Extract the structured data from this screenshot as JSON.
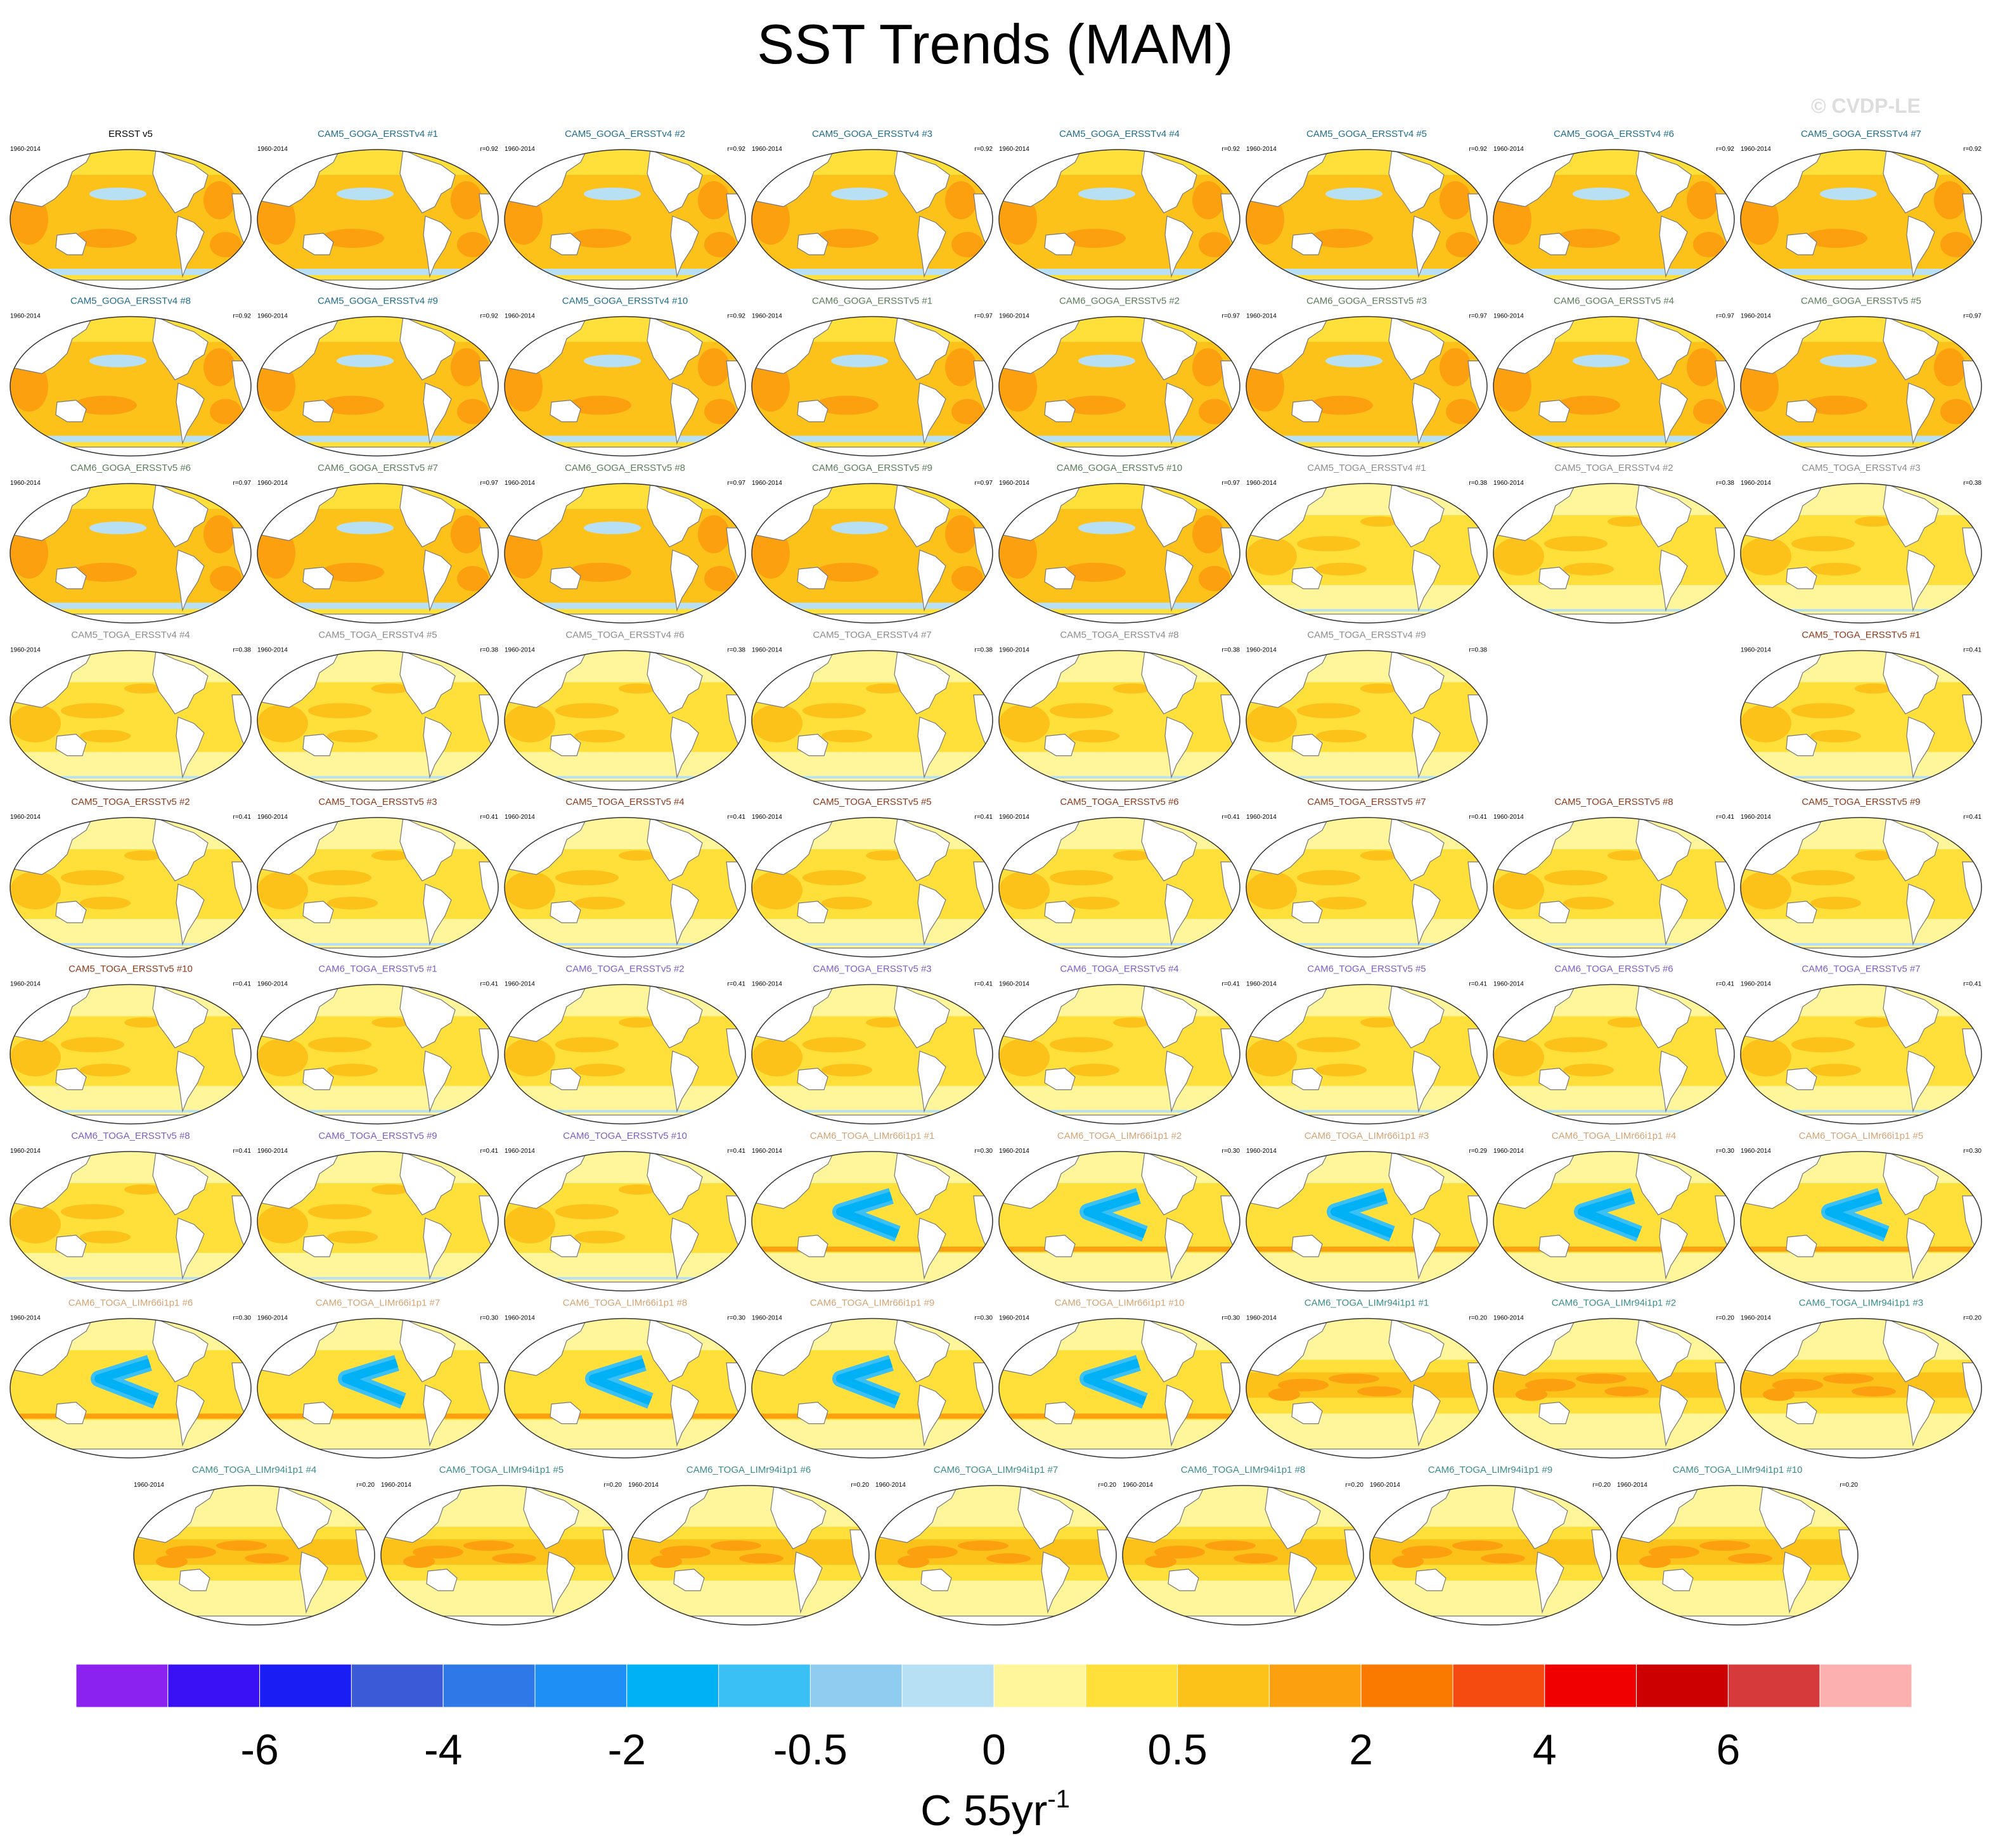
{
  "title": "SST Trends (MAM)",
  "watermark": "© CVDP-LE",
  "groups": [
    {
      "color": "#000000",
      "panels": [
        {
          "title": "ERSST v5",
          "period": "1960-2014"
        }
      ]
    },
    {
      "color": "#1f6f8b",
      "panels": [
        {
          "title": "CAM5_GOGA_ERSSTv4 #1",
          "period": "1960-2014",
          "r": "r=0.92"
        },
        {
          "title": "CAM5_GOGA_ERSSTv4 #2",
          "period": "1960-2014",
          "r": "r=0.92"
        },
        {
          "title": "CAM5_GOGA_ERSSTv4 #3",
          "period": "1960-2014",
          "r": "r=0.92"
        },
        {
          "title": "CAM5_GOGA_ERSSTv4 #4",
          "period": "1960-2014",
          "r": "r=0.92"
        },
        {
          "title": "CAM5_GOGA_ERSSTv4 #5",
          "period": "1960-2014",
          "r": "r=0.92"
        },
        {
          "title": "CAM5_GOGA_ERSSTv4 #6",
          "period": "1960-2014",
          "r": "r=0.92"
        },
        {
          "title": "CAM5_GOGA_ERSSTv4 #7",
          "period": "1960-2014",
          "r": "r=0.92"
        },
        {
          "title": "CAM5_GOGA_ERSSTv4 #8",
          "period": "1960-2014",
          "r": "r=0.92"
        },
        {
          "title": "CAM5_GOGA_ERSSTv4 #9",
          "period": "1960-2014",
          "r": "r=0.92"
        },
        {
          "title": "CAM5_GOGA_ERSSTv4 #10",
          "period": "1960-2014",
          "r": "r=0.92"
        }
      ]
    },
    {
      "color": "#5a7d5a",
      "panels": [
        {
          "title": "CAM6_GOGA_ERSSTv5 #1",
          "period": "1960-2014",
          "r": "r=0.97"
        },
        {
          "title": "CAM6_GOGA_ERSSTv5 #2",
          "period": "1960-2014",
          "r": "r=0.97"
        },
        {
          "title": "CAM6_GOGA_ERSSTv5 #3",
          "period": "1960-2014",
          "r": "r=0.97"
        },
        {
          "title": "CAM6_GOGA_ERSSTv5 #4",
          "period": "1960-2014",
          "r": "r=0.97"
        },
        {
          "title": "CAM6_GOGA_ERSSTv5 #5",
          "period": "1960-2014",
          "r": "r=0.97"
        },
        {
          "title": "CAM6_GOGA_ERSSTv5 #6",
          "period": "1960-2014",
          "r": "r=0.97"
        },
        {
          "title": "CAM6_GOGA_ERSSTv5 #7",
          "period": "1960-2014",
          "r": "r=0.97"
        },
        {
          "title": "CAM6_GOGA_ERSSTv5 #8",
          "period": "1960-2014",
          "r": "r=0.97"
        },
        {
          "title": "CAM6_GOGA_ERSSTv5 #9",
          "period": "1960-2014",
          "r": "r=0.97"
        },
        {
          "title": "CAM6_GOGA_ERSSTv5 #10",
          "period": "1960-2014",
          "r": "r=0.97"
        }
      ]
    },
    {
      "color": "#8c8c8c",
      "panels": [
        {
          "title": "CAM5_TOGA_ERSSTv4 #1",
          "period": "1960-2014",
          "r": "r=0.38"
        },
        {
          "title": "CAM5_TOGA_ERSSTv4 #2",
          "period": "1960-2014",
          "r": "r=0.38"
        },
        {
          "title": "CAM5_TOGA_ERSSTv4 #3",
          "period": "1960-2014",
          "r": "r=0.38"
        },
        {
          "title": "CAM5_TOGA_ERSSTv4 #4",
          "period": "1960-2014",
          "r": "r=0.38"
        },
        {
          "title": "CAM5_TOGA_ERSSTv4 #5",
          "period": "1960-2014",
          "r": "r=0.38"
        },
        {
          "title": "CAM5_TOGA_ERSSTv4 #6",
          "period": "1960-2014",
          "r": "r=0.38"
        },
        {
          "title": "CAM5_TOGA_ERSSTv4 #7",
          "period": "1960-2014",
          "r": "r=0.38"
        },
        {
          "title": "CAM5_TOGA_ERSSTv4 #8",
          "period": "1960-2014",
          "r": "r=0.38"
        },
        {
          "title": "CAM5_TOGA_ERSSTv4 #9",
          "period": "1960-2014",
          "r": "r=0.38"
        }
      ]
    },
    {
      "color": "#8b3a1a",
      "panels": [
        {
          "title": "CAM5_TOGA_ERSSTv5 #1",
          "period": "1960-2014",
          "r": "r=0.41"
        },
        {
          "title": "CAM5_TOGA_ERSSTv5 #2",
          "period": "1960-2014",
          "r": "r=0.41"
        },
        {
          "title": "CAM5_TOGA_ERSSTv5 #3",
          "period": "1960-2014",
          "r": "r=0.41"
        },
        {
          "title": "CAM5_TOGA_ERSSTv5 #4",
          "period": "1960-2014",
          "r": "r=0.41"
        },
        {
          "title": "CAM5_TOGA_ERSSTv5 #5",
          "period": "1960-2014",
          "r": "r=0.41"
        },
        {
          "title": "CAM5_TOGA_ERSSTv5 #6",
          "period": "1960-2014",
          "r": "r=0.41"
        },
        {
          "title": "CAM5_TOGA_ERSSTv5 #7",
          "period": "1960-2014",
          "r": "r=0.41"
        },
        {
          "title": "CAM5_TOGA_ERSSTv5 #8",
          "period": "1960-2014",
          "r": "r=0.41"
        },
        {
          "title": "CAM5_TOGA_ERSSTv5 #9",
          "period": "1960-2014",
          "r": "r=0.41"
        },
        {
          "title": "CAM5_TOGA_ERSSTv5 #10",
          "period": "1960-2014",
          "r": "r=0.41"
        }
      ]
    },
    {
      "color": "#7b5ec6",
      "panels": [
        {
          "title": "CAM6_TOGA_ERSSTv5 #1",
          "period": "1960-2014",
          "r": "r=0.41"
        },
        {
          "title": "CAM6_TOGA_ERSSTv5 #2",
          "period": "1960-2014",
          "r": "r=0.41"
        },
        {
          "title": "CAM6_TOGA_ERSSTv5 #3",
          "period": "1960-2014",
          "r": "r=0.41"
        },
        {
          "title": "CAM6_TOGA_ERSSTv5 #4",
          "period": "1960-2014",
          "r": "r=0.41"
        },
        {
          "title": "CAM6_TOGA_ERSSTv5 #5",
          "period": "1960-2014",
          "r": "r=0.41"
        },
        {
          "title": "CAM6_TOGA_ERSSTv5 #6",
          "period": "1960-2014",
          "r": "r=0.41"
        },
        {
          "title": "CAM6_TOGA_ERSSTv5 #7",
          "period": "1960-2014",
          "r": "r=0.41"
        },
        {
          "title": "CAM6_TOGA_ERSSTv5 #8",
          "period": "1960-2014",
          "r": "r=0.41"
        },
        {
          "title": "CAM6_TOGA_ERSSTv5 #9",
          "period": "1960-2014",
          "r": "r=0.41"
        },
        {
          "title": "CAM6_TOGA_ERSSTv5 #10",
          "period": "1960-2014",
          "r": "r=0.41"
        }
      ]
    },
    {
      "color": "#d4a373",
      "panels": [
        {
          "title": "CAM6_TOGA_LIMr66i1p1 #1",
          "period": "1960-2014",
          "r": "r=0.30"
        },
        {
          "title": "CAM6_TOGA_LIMr66i1p1 #2",
          "period": "1960-2014",
          "r": "r=0.30"
        },
        {
          "title": "CAM6_TOGA_LIMr66i1p1 #3",
          "period": "1960-2014",
          "r": "r=0.29"
        },
        {
          "title": "CAM6_TOGA_LIMr66i1p1 #4",
          "period": "1960-2014",
          "r": "r=0.30"
        },
        {
          "title": "CAM6_TOGA_LIMr66i1p1 #5",
          "period": "1960-2014",
          "r": "r=0.30"
        },
        {
          "title": "CAM6_TOGA_LIMr66i1p1 #6",
          "period": "1960-2014",
          "r": "r=0.30"
        },
        {
          "title": "CAM6_TOGA_LIMr66i1p1 #7",
          "period": "1960-2014",
          "r": "r=0.30"
        },
        {
          "title": "CAM6_TOGA_LIMr66i1p1 #8",
          "period": "1960-2014",
          "r": "r=0.30"
        },
        {
          "title": "CAM6_TOGA_LIMr66i1p1 #9",
          "period": "1960-2014",
          "r": "r=0.30"
        },
        {
          "title": "CAM6_TOGA_LIMr66i1p1 #10",
          "period": "1960-2014",
          "r": "r=0.30"
        }
      ]
    },
    {
      "color": "#3a8d8d",
      "panels": [
        {
          "title": "CAM6_TOGA_LIMr94i1p1 #1",
          "period": "1960-2014",
          "r": "r=0.20"
        },
        {
          "title": "CAM6_TOGA_LIMr94i1p1 #2",
          "period": "1960-2014",
          "r": "r=0.20"
        },
        {
          "title": "CAM6_TOGA_LIMr94i1p1 #3",
          "period": "1960-2014",
          "r": "r=0.20"
        },
        {
          "title": "CAM6_TOGA_LIMr94i1p1 #4",
          "period": "1960-2014",
          "r": "r=0.20"
        },
        {
          "title": "CAM6_TOGA_LIMr94i1p1 #5",
          "period": "1960-2014",
          "r": "r=0.20"
        },
        {
          "title": "CAM6_TOGA_LIMr94i1p1 #6",
          "period": "1960-2014",
          "r": "r=0.20"
        },
        {
          "title": "CAM6_TOGA_LIMr94i1p1 #7",
          "period": "1960-2014",
          "r": "r=0.20"
        },
        {
          "title": "CAM6_TOGA_LIMr94i1p1 #8",
          "period": "1960-2014",
          "r": "r=0.20"
        },
        {
          "title": "CAM6_TOGA_LIMr94i1p1 #9",
          "period": "1960-2014",
          "r": "r=0.20"
        },
        {
          "title": "CAM6_TOGA_LIMr94i1p1 #10",
          "period": "1960-2014",
          "r": "r=0.20"
        }
      ]
    }
  ],
  "colorbar": {
    "colors": [
      "#8b22f0",
      "#3a10f5",
      "#1a1ef5",
      "#3a5ad8",
      "#2e78e8",
      "#1e90f5",
      "#00b2f5",
      "#3ac0f5",
      "#90ccf0",
      "#b8e0f5",
      "#fff59a",
      "#ffdf3a",
      "#fcc21a",
      "#fca010",
      "#fa7a00",
      "#f54a10",
      "#f00000",
      "#cc0000",
      "#d63a3a",
      "#fcb0b0"
    ],
    "ticks": [
      -6,
      -4,
      -2,
      -0.5,
      0,
      0.5,
      2,
      4,
      6
    ],
    "label": "C 55yr",
    "label_superscript": "-1"
  }
}
